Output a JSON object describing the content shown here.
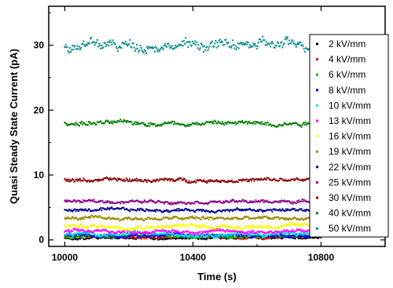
{
  "chart_data": {
    "type": "scatter",
    "title": "",
    "xlabel": "Time (s)",
    "ylabel": "Quasi Steady State Current (pA)",
    "xlim": [
      9950,
      11000
    ],
    "ylim": [
      -1,
      36
    ],
    "xticks": [
      10000,
      10400,
      10800
    ],
    "yticks": [
      0,
      10,
      20,
      30
    ],
    "x_range": [
      10000,
      10800
    ],
    "grid": false,
    "legend_position": "right",
    "series": [
      {
        "name": "2 kV/mm",
        "color": "#000000",
        "mean": 0.3,
        "spread": 0.25
      },
      {
        "name": "4 kV/mm",
        "color": "#e8000b",
        "mean": 0.5,
        "spread": 0.3
      },
      {
        "name": "6 kV/mm",
        "color": "#00c000",
        "mean": 0.6,
        "spread": 0.35
      },
      {
        "name": "8 kV/mm",
        "color": "#0000ff",
        "mean": 0.7,
        "spread": 0.35
      },
      {
        "name": "10 kV/mm",
        "color": "#00e5ff",
        "mean": 0.9,
        "spread": 0.35
      },
      {
        "name": "13 kV/mm",
        "color": "#ff00ff",
        "mean": 1.3,
        "spread": 0.35
      },
      {
        "name": "16 kV/mm",
        "color": "#ffff00",
        "mean": 2.1,
        "spread": 0.4
      },
      {
        "name": "19 kV/mm",
        "color": "#9a8a00",
        "mean": 3.3,
        "spread": 0.35
      },
      {
        "name": "22 kV/mm",
        "color": "#000090",
        "mean": 4.6,
        "spread": 0.3
      },
      {
        "name": "25 kV/mm",
        "color": "#8b008b",
        "mean": 5.9,
        "spread": 0.3
      },
      {
        "name": "30 kV/mm",
        "color": "#8b0000",
        "mean": 9.2,
        "spread": 0.35
      },
      {
        "name": "40 kV/mm",
        "color": "#008000",
        "mean": 18.0,
        "spread": 0.45
      },
      {
        "name": "50 kV/mm",
        "color": "#008b8b",
        "mean": 30.0,
        "spread": 1.0
      }
    ]
  }
}
